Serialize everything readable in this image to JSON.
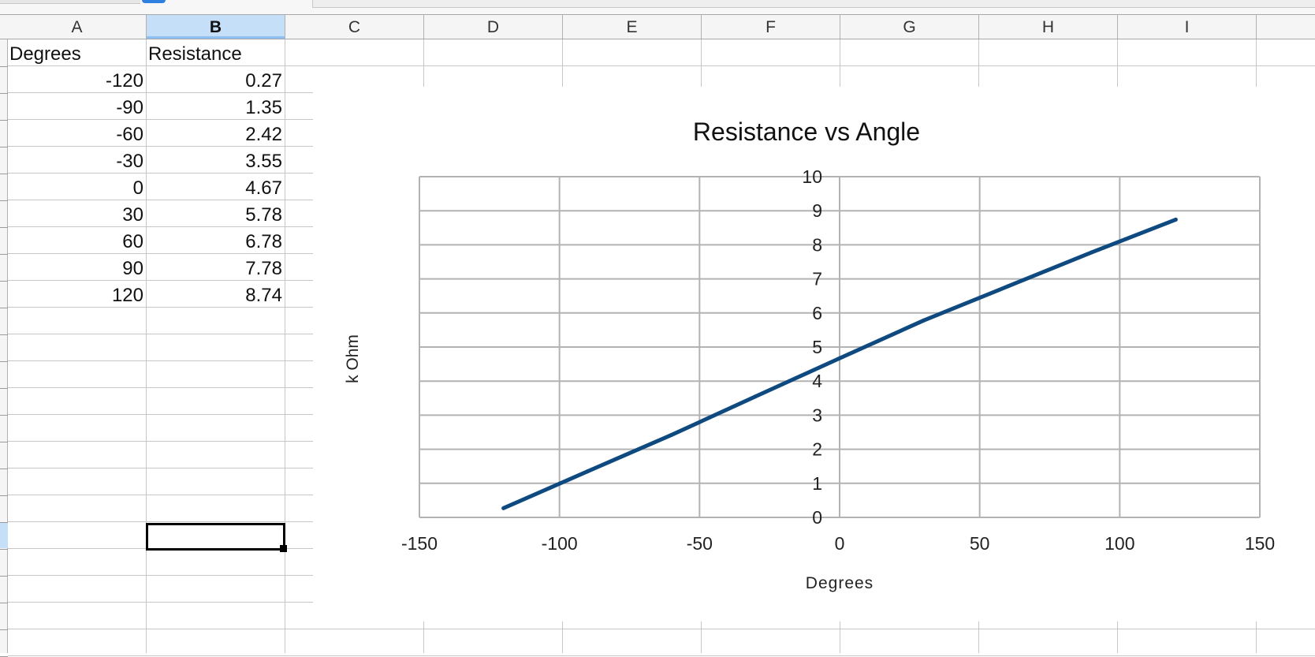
{
  "spreadsheet": {
    "columns": [
      "A",
      "B",
      "C",
      "D",
      "E",
      "F",
      "G",
      "H",
      "I"
    ],
    "selected_column": "B",
    "headers": [
      "Degrees",
      "Resistance"
    ],
    "rows": [
      [
        "-120",
        "0.27"
      ],
      [
        "-90",
        "1.35"
      ],
      [
        "-60",
        "2.42"
      ],
      [
        "-30",
        "3.55"
      ],
      [
        "0",
        "4.67"
      ],
      [
        "30",
        "5.78"
      ],
      [
        "60",
        "6.78"
      ],
      [
        "90",
        "7.78"
      ],
      [
        "120",
        "8.74"
      ]
    ],
    "active_cell": "B19"
  },
  "chart_data": {
    "type": "line",
    "title": "Resistance vs Angle",
    "xlabel": "Degrees",
    "ylabel": "k Ohm",
    "xlim": [
      -150,
      150
    ],
    "ylim": [
      0,
      10
    ],
    "xticks": [
      -150,
      -100,
      -50,
      0,
      50,
      100,
      150
    ],
    "yticks": [
      0,
      1,
      2,
      3,
      4,
      5,
      6,
      7,
      8,
      9,
      10
    ],
    "grid": true,
    "legend": "none",
    "series_color": "#0e4a80",
    "grid_color": "#b3b3b3",
    "series": [
      {
        "x": [
          -120,
          -90,
          -60,
          -30,
          0,
          30,
          60,
          90,
          120
        ],
        "values": [
          0.27,
          1.35,
          2.42,
          3.55,
          4.67,
          5.78,
          6.78,
          7.78,
          8.74
        ]
      }
    ]
  }
}
